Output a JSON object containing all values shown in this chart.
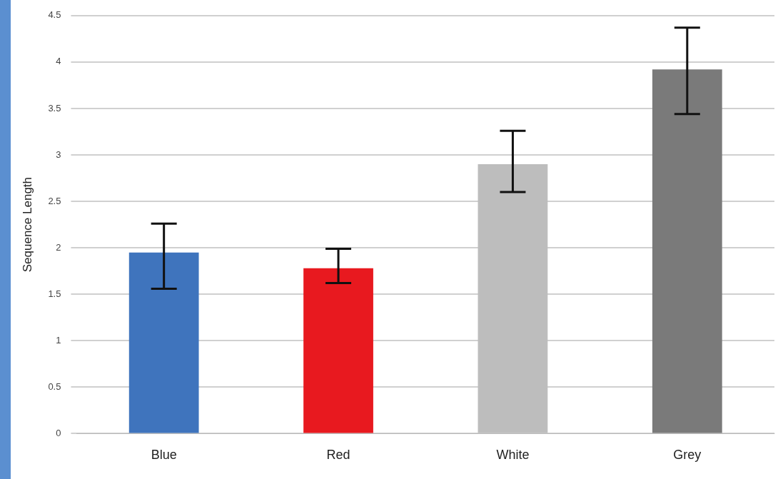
{
  "chart_data": {
    "type": "bar",
    "ylabel": "Sequence Length",
    "categories": [
      "Blue",
      "Red",
      "White",
      "Grey"
    ],
    "values": [
      1.95,
      1.78,
      2.9,
      3.92
    ],
    "colors": [
      "#3f74bd",
      "#e8191f",
      "#bdbdbd",
      "#7a7a7a"
    ],
    "errors": [
      [
        1.56,
        2.26
      ],
      [
        1.62,
        1.99
      ],
      [
        2.6,
        3.26
      ],
      [
        3.44,
        4.37
      ]
    ],
    "ylim": [
      0,
      4.5
    ],
    "yticks": [
      0,
      0.5,
      1,
      1.5,
      2,
      2.5,
      3,
      3.5,
      4,
      4.5
    ],
    "grid": "y"
  }
}
